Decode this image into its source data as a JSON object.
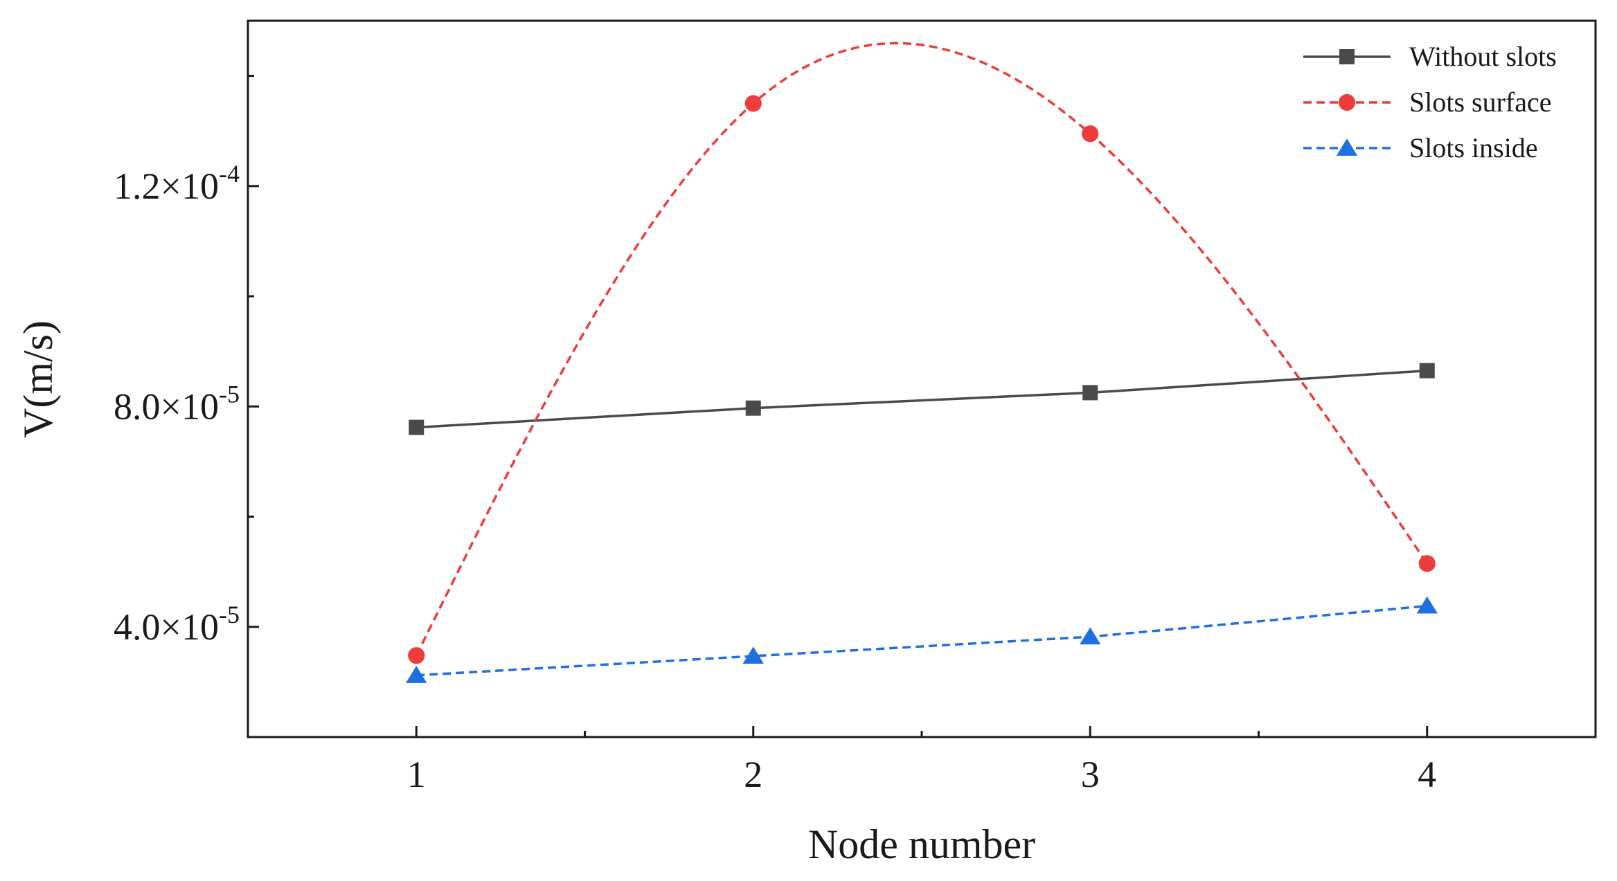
{
  "chart_data": {
    "type": "line",
    "xlabel": "Node number",
    "ylabel": "V(m/s)",
    "xlim": [
      0.5,
      4.5
    ],
    "ylim": [
      2e-05,
      0.00015
    ],
    "x_ticks": [
      {
        "value": 1,
        "label": "1"
      },
      {
        "value": 2,
        "label": "2"
      },
      {
        "value": 3,
        "label": "3"
      },
      {
        "value": 4,
        "label": "4"
      }
    ],
    "x_minor_ticks": [
      1.5,
      2.5,
      3.5
    ],
    "y_ticks": [
      {
        "value": 4e-05,
        "mantissa": "4.0×10",
        "exponent": "-5"
      },
      {
        "value": 8e-05,
        "mantissa": "8.0×10",
        "exponent": "-5"
      },
      {
        "value": 0.00012,
        "mantissa": "1.2×10",
        "exponent": "-4"
      }
    ],
    "y_minor_ticks": [
      6e-05,
      0.0001,
      0.00014
    ],
    "grid": false,
    "legend_position": "top-right",
    "x": [
      1,
      2,
      3,
      4
    ],
    "series": [
      {
        "name": "Without slots",
        "values": [
          7.62e-05,
          7.97e-05,
          8.25e-05,
          8.65e-05
        ],
        "color": "#4a4a4a",
        "marker": "square",
        "line": "solid",
        "smooth": false
      },
      {
        "name": "Slots surface",
        "values": [
          3.48e-05,
          0.000135,
          0.0001295,
          5.15e-05
        ],
        "color": "#ee3b3b",
        "marker": "circle",
        "line": "dashed",
        "smooth": true
      },
      {
        "name": "Slots inside",
        "values": [
          3.12e-05,
          3.47e-05,
          3.82e-05,
          4.38e-05
        ],
        "color": "#1f6fe0",
        "marker": "triangle",
        "line": "dashed",
        "smooth": false
      }
    ]
  }
}
